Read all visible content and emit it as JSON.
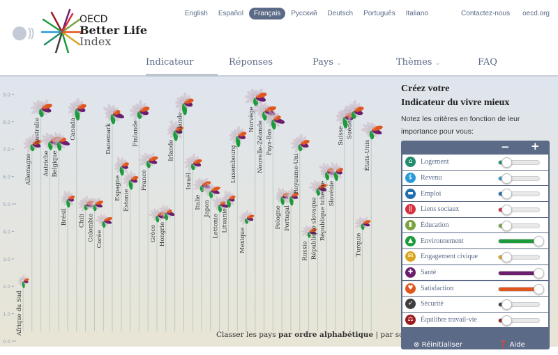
{
  "logo": {
    "line1": "OECD",
    "line2": "Better Life",
    "line3": "Index"
  },
  "languages": [
    {
      "label": "English",
      "active": false
    },
    {
      "label": "Español",
      "active": false
    },
    {
      "label": "Français",
      "active": true
    },
    {
      "label": "Русский",
      "active": false
    },
    {
      "label": "Deutsch",
      "active": false
    },
    {
      "label": "Português",
      "active": false
    },
    {
      "label": "Italiano",
      "active": false
    }
  ],
  "top_links": [
    "Contactez-nous",
    "oecd.org"
  ],
  "nav": {
    "items": [
      "Indicateur",
      "Réponses",
      "Pays",
      "Thèmes",
      "FAQ"
    ],
    "active": "Indicateur"
  },
  "colors": {
    "accent": "#5b6a86"
  },
  "sort": {
    "prefix": "Classer les pays",
    "alpha": "par ordre alphabétique",
    "sep": "|",
    "score": "par score"
  },
  "panel": {
    "title_line1": "Créez votre",
    "title_line2": "Indicateur du vivre mieux",
    "subtitle": "Notez les critères en fonction de leur importance pour vous:",
    "minus": "−",
    "plus": "+",
    "criteria": [
      {
        "label": "Logement",
        "icon": "house-icon",
        "color": "#1f8c6e",
        "weight": 0
      },
      {
        "label": "Revenu",
        "icon": "money-icon",
        "color": "#2a9ad6",
        "weight": 0
      },
      {
        "label": "Emploi",
        "icon": "briefcase-icon",
        "color": "#1f6fae",
        "weight": 0
      },
      {
        "label": "Liens sociaux",
        "icon": "people-icon",
        "color": "#d5303e",
        "weight": 0
      },
      {
        "label": "Éducation",
        "icon": "book-icon",
        "color": "#7ba23f",
        "weight": 0
      },
      {
        "label": "Environnement",
        "icon": "tree-icon",
        "color": "#1c9b3a",
        "weight": 1
      },
      {
        "label": "Engagement civique",
        "icon": "envelope-icon",
        "color": "#d9a520",
        "weight": 0
      },
      {
        "label": "Santé",
        "icon": "cross-icon",
        "color": "#6b1e6e",
        "weight": 1
      },
      {
        "label": "Satisfaction",
        "icon": "heart-icon",
        "color": "#e0561f",
        "weight": 1
      },
      {
        "label": "Sécurité",
        "icon": "runner-icon",
        "color": "#3f3f3f",
        "weight": 0
      },
      {
        "label": "Équilibre travail-vie",
        "icon": "scales-icon",
        "color": "#9b1b1f",
        "weight": 0
      }
    ],
    "reset": "Réinitialiser",
    "help": "Aide"
  },
  "chart_data": {
    "type": "scatter",
    "ylim": [
      0,
      9
    ],
    "yticks": [
      "0.0",
      "1.0",
      "2.0",
      "3.0",
      "4.0",
      "5.0",
      "6.0",
      "7.0",
      "8.0",
      "9.0"
    ],
    "countries": [
      "Afrique du Sud",
      "Allemagne",
      "Australie",
      "Autriche",
      "Belgique",
      "Brésil",
      "Canada",
      "Chili",
      "Colombie",
      "Corée",
      "Danemark",
      "Espagne",
      "Estonie",
      "Finlande",
      "France",
      "Grèce",
      "Hongrie",
      "Irlande",
      "Islande",
      "Israël",
      "Italie",
      "Japon",
      "Lettonie",
      "Lituanie",
      "Luxembourg",
      "Mexique",
      "Norvège",
      "Nouvelle-Zélande",
      "Pays-Bas",
      "Pologne",
      "Portugal",
      "Royaume-Uni",
      "Russie",
      "République slovaque",
      "République tchèque",
      "Slovénie",
      "Suisse",
      "Suède",
      "Turquie",
      "États-Unis"
    ],
    "values": [
      2.2,
      7.2,
      8.5,
      7.3,
      7.3,
      5.2,
      8.5,
      5.0,
      5.0,
      4.4,
      8.3,
      6.4,
      5.9,
      8.4,
      6.6,
      4.6,
      4.7,
      7.7,
      8.7,
      6.5,
      5.7,
      5.5,
      5.0,
      5.2,
      7.5,
      4.5,
      8.9,
      8.4,
      8.1,
      5.3,
      5.3,
      7.2,
      4.0,
      5.6,
      6.2,
      6.2,
      8.2,
      8.4,
      4.3,
      7.7
    ]
  }
}
